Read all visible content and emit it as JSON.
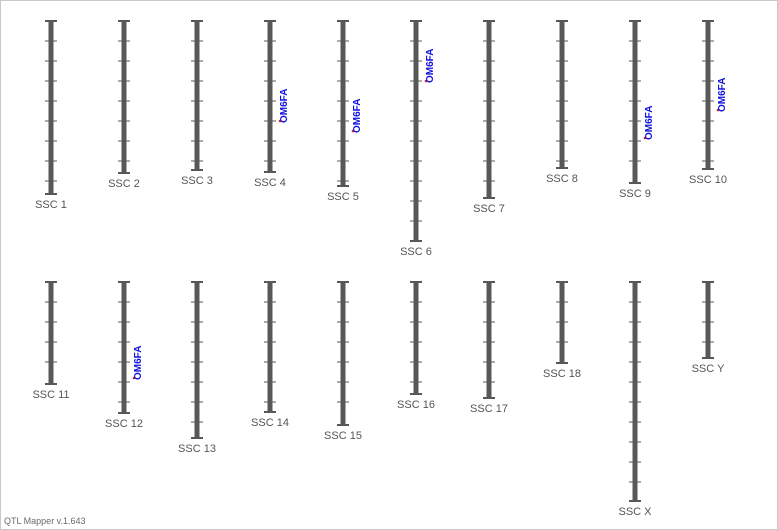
{
  "chromosomes": [
    {
      "label": "SSC 1"
    },
    {
      "label": "SSC 2"
    },
    {
      "label": "SSC 3"
    },
    {
      "label": "SSC 4",
      "qtls": [
        {
          "label": "OM6FA"
        }
      ]
    },
    {
      "label": "SSC 5",
      "qtls": [
        {
          "label": "OM6FA"
        }
      ]
    },
    {
      "label": "SSC 6",
      "qtls": [
        {
          "label": "OM6FA"
        }
      ]
    },
    {
      "label": "SSC 7"
    },
    {
      "label": "SSC 8"
    },
    {
      "label": "SSC 9",
      "qtls": [
        {
          "label": "OM6FA"
        }
      ]
    },
    {
      "label": "SSC 10",
      "qtls": [
        {
          "label": "OM6FA"
        }
      ]
    },
    {
      "label": "SSC 11"
    },
    {
      "label": "SSC 12",
      "qtls": [
        {
          "label": "OM6FA"
        }
      ]
    },
    {
      "label": "SSC 13"
    },
    {
      "label": "SSC 14"
    },
    {
      "label": "SSC 15"
    },
    {
      "label": "SSC 16"
    },
    {
      "label": "SSC 17"
    },
    {
      "label": "SSC 18"
    },
    {
      "label": "SSC X"
    },
    {
      "label": "SSC Y"
    }
  ],
  "footer": "QTL Mapper v.1.643"
}
